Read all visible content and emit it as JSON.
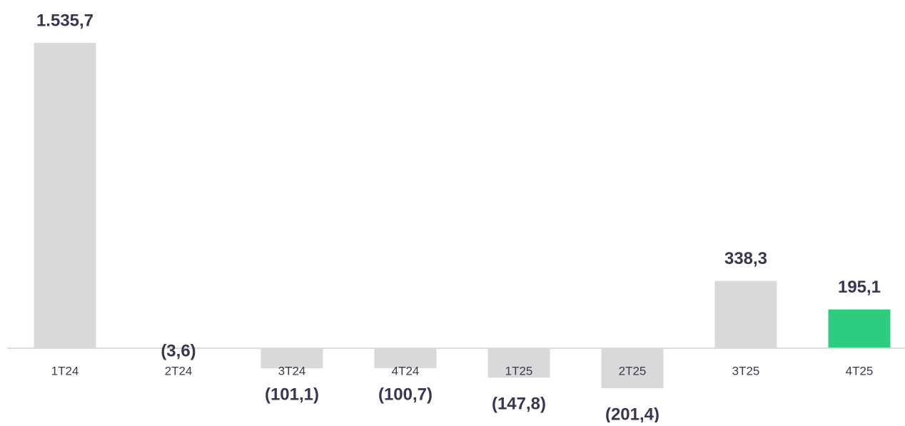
{
  "chart_data": {
    "type": "bar",
    "categories": [
      "1T24",
      "2T24",
      "3T24",
      "4T24",
      "1T25",
      "2T25",
      "3T25",
      "4T25"
    ],
    "values": [
      1535.7,
      -3.6,
      -101.1,
      -100.7,
      -147.8,
      -201.4,
      338.3,
      195.1
    ],
    "value_labels": [
      "1.535,7",
      "(3,6)",
      "(101,1)",
      "(100,7)",
      "(147,8)",
      "(201,4)",
      "338,3",
      "195,1"
    ],
    "colors": [
      "#d9d9d9",
      "#d9d9d9",
      "#d9d9d9",
      "#d9d9d9",
      "#d9d9d9",
      "#d9d9d9",
      "#d9d9d9",
      "#2ecc7f"
    ]
  }
}
